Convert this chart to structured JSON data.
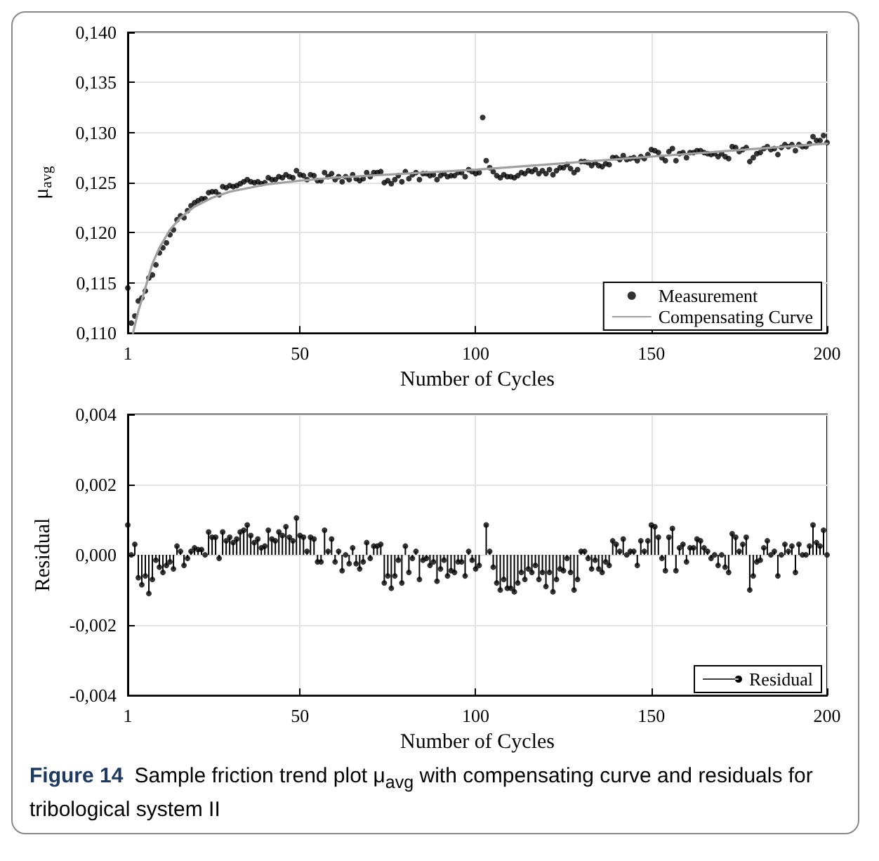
{
  "chart_data": [
    {
      "type": "scatter",
      "xlabel": "Number of Cycles",
      "ylabel": "μ$_{avg}$",
      "xlim": [
        1,
        200
      ],
      "xticks": [
        1,
        50,
        100,
        150,
        200
      ],
      "ylim": [
        0.11,
        0.14
      ],
      "yticks": [
        {
          "value": 0.11,
          "label": "0,110"
        },
        {
          "value": 0.115,
          "label": "0,115"
        },
        {
          "value": 0.12,
          "label": "0,120"
        },
        {
          "value": 0.125,
          "label": "0,125"
        },
        {
          "value": 0.13,
          "label": "0,130"
        },
        {
          "value": 0.135,
          "label": "0,135"
        },
        {
          "value": 0.14,
          "label": "0,140"
        }
      ],
      "grid": true,
      "legend": "bottom right",
      "x": [
        1,
        2,
        3,
        4,
        5,
        6,
        7,
        8,
        9,
        10,
        11,
        12,
        13,
        14,
        15,
        16,
        17,
        18,
        19,
        20,
        21,
        22,
        23,
        24,
        25,
        26,
        27,
        28,
        29,
        30,
        31,
        32,
        33,
        34,
        35,
        36,
        37,
        38,
        39,
        40,
        41,
        42,
        43,
        44,
        45,
        46,
        47,
        48,
        49,
        50,
        51,
        52,
        53,
        54,
        55,
        56,
        57,
        58,
        59,
        60,
        61,
        62,
        63,
        64,
        65,
        66,
        67,
        68,
        69,
        70,
        71,
        72,
        73,
        74,
        75,
        76,
        77,
        78,
        79,
        80,
        81,
        82,
        83,
        84,
        85,
        86,
        87,
        88,
        89,
        90,
        91,
        92,
        93,
        94,
        95,
        96,
        97,
        98,
        99,
        100,
        101,
        102,
        103,
        104,
        105,
        106,
        107,
        108,
        109,
        110,
        111,
        112,
        113,
        114,
        115,
        116,
        117,
        118,
        119,
        120,
        121,
        122,
        123,
        124,
        125,
        126,
        127,
        128,
        129,
        130,
        131,
        132,
        133,
        134,
        135,
        136,
        137,
        138,
        139,
        140,
        141,
        142,
        143,
        144,
        145,
        146,
        147,
        148,
        149,
        150,
        151,
        152,
        153,
        154,
        155,
        156,
        157,
        158,
        159,
        160,
        161,
        162,
        163,
        164,
        165,
        166,
        167,
        168,
        169,
        170,
        171,
        172,
        173,
        174,
        175,
        176,
        177,
        178,
        179,
        180,
        181,
        182,
        183,
        184,
        185,
        186,
        187,
        188,
        189,
        190,
        191,
        192,
        193,
        194,
        195,
        196,
        197,
        198,
        199,
        200
      ],
      "series": [
        {
          "name": "Measurement",
          "marker": "circle",
          "color": "#000000",
          "values": [
            0.1145,
            0.111,
            0.1117,
            0.1132,
            0.1135,
            0.1142,
            0.1155,
            0.1158,
            0.1168,
            0.118,
            0.1185,
            0.119,
            0.1198,
            0.1203,
            0.1213,
            0.1217,
            0.1215,
            0.1222,
            0.1227,
            0.123,
            0.1232,
            0.1234,
            0.1234,
            0.124,
            0.1241,
            0.1241,
            0.1238,
            0.1246,
            0.1245,
            0.1247,
            0.1246,
            0.1247,
            0.1249,
            0.1251,
            0.1253,
            0.1251,
            0.125,
            0.1251,
            0.1249,
            0.125,
            0.1255,
            0.1253,
            0.1253,
            0.1256,
            0.1255,
            0.1258,
            0.1256,
            0.1255,
            0.1262,
            0.1258,
            0.1257,
            0.1253,
            0.1258,
            0.1257,
            0.1252,
            0.1252,
            0.126,
            0.1256,
            0.1259,
            0.1253,
            0.1256,
            0.1251,
            0.1256,
            0.1253,
            0.1258,
            0.1254,
            0.1252,
            0.1254,
            0.126,
            0.1256,
            0.126,
            0.126,
            0.1261,
            0.125,
            0.1252,
            0.1249,
            0.1253,
            0.1257,
            0.1251,
            0.1261,
            0.1254,
            0.1258,
            0.126,
            0.1253,
            0.1259,
            0.1259,
            0.1257,
            0.1258,
            0.1253,
            0.1257,
            0.1259,
            0.1256,
            0.1257,
            0.1257,
            0.126,
            0.126,
            0.1256,
            0.1263,
            0.1261,
            0.1259,
            0.126,
            0.1315,
            0.1272,
            0.1265,
            0.1261,
            0.1257,
            0.1255,
            0.1258,
            0.1256,
            0.1256,
            0.1255,
            0.1257,
            0.126,
            0.1259,
            0.1262,
            0.1261,
            0.1263,
            0.1259,
            0.1262,
            0.1259,
            0.1263,
            0.1258,
            0.1262,
            0.1265,
            0.1265,
            0.1268,
            0.1264,
            0.126,
            0.1263,
            0.1271,
            0.1271,
            0.127,
            0.1267,
            0.127,
            0.1267,
            0.1266,
            0.1269,
            0.1268,
            0.1275,
            0.1275,
            0.1273,
            0.1277,
            0.1273,
            0.1274,
            0.1275,
            0.1272,
            0.1276,
            0.1274,
            0.1278,
            0.1283,
            0.1282,
            0.128,
            0.1275,
            0.1272,
            0.1281,
            0.1284,
            0.1272,
            0.1279,
            0.128,
            0.1275,
            0.128,
            0.128,
            0.1282,
            0.1282,
            0.128,
            0.1279,
            0.1278,
            0.1279,
            0.1276,
            0.1279,
            0.1276,
            0.1274,
            0.1286,
            0.1285,
            0.1281,
            0.1283,
            0.1285,
            0.1271,
            0.1275,
            0.1279,
            0.128,
            0.1284,
            0.1286,
            0.1283,
            0.1284,
            0.1278,
            0.1285,
            0.1288,
            0.1286,
            0.1288,
            0.1282,
            0.1288,
            0.1286,
            0.1286,
            0.1289,
            0.1296,
            0.1292,
            0.1292,
            0.1297,
            0.129
          ]
        },
        {
          "name": "Compensating Curve",
          "type": "line",
          "marker": "none",
          "color": "#a0a0a0",
          "x": [
            2.5,
            4,
            5,
            6,
            8,
            10,
            13,
            16,
            20,
            25,
            30,
            40,
            50,
            60,
            80,
            100,
            120,
            150,
            200
          ],
          "values": [
            0.11,
            0.1122,
            0.1133,
            0.1145,
            0.1169,
            0.1185,
            0.1203,
            0.1215,
            0.1226,
            0.1235,
            0.1241,
            0.1248,
            0.1252,
            0.1255,
            0.1259,
            0.1263,
            0.1268,
            0.1276,
            0.1289
          ]
        }
      ]
    },
    {
      "type": "lollipop",
      "marker": "circle",
      "xlabel": "Number of Cycles",
      "ylabel": "Residual",
      "xlim": [
        1,
        200
      ],
      "xticks": [
        1,
        50,
        100,
        150,
        200
      ],
      "ylim": [
        -0.004,
        0.004
      ],
      "yticks": [
        {
          "value": -0.004,
          "label": "-0,004"
        },
        {
          "value": -0.002,
          "label": "-0,002"
        },
        {
          "value": 0,
          "label": "0,000"
        },
        {
          "value": 0.002,
          "label": "0,002"
        },
        {
          "value": 0.004,
          "label": "0,004"
        }
      ],
      "grid": true,
      "legend": "bottom right",
      "annotations": [
        "Figure 14",
        "Sample friction trend plot μ$_{avg}$ with compensating curve and residuals for tribological system II"
      ],
      "x": [
        1,
        2,
        3,
        4,
        5,
        6,
        7,
        8,
        9,
        10,
        11,
        12,
        13,
        14,
        15,
        16,
        17,
        18,
        19,
        20,
        21,
        22,
        23,
        24,
        25,
        26,
        27,
        28,
        29,
        30,
        31,
        32,
        33,
        34,
        35,
        36,
        37,
        38,
        39,
        40,
        41,
        42,
        43,
        44,
        45,
        46,
        47,
        48,
        49,
        50,
        51,
        52,
        53,
        54,
        55,
        56,
        57,
        58,
        59,
        60,
        61,
        62,
        63,
        64,
        65,
        66,
        67,
        68,
        69,
        70,
        71,
        72,
        73,
        74,
        75,
        76,
        77,
        78,
        79,
        80,
        81,
        82,
        83,
        84,
        85,
        86,
        87,
        88,
        89,
        90,
        91,
        92,
        93,
        94,
        95,
        96,
        97,
        98,
        99,
        100,
        101,
        102,
        103,
        104,
        105,
        106,
        107,
        108,
        109,
        110,
        111,
        112,
        113,
        114,
        115,
        116,
        117,
        118,
        119,
        120,
        121,
        122,
        123,
        124,
        125,
        126,
        127,
        128,
        129,
        130,
        131,
        132,
        133,
        134,
        135,
        136,
        137,
        138,
        139,
        140,
        141,
        142,
        143,
        144,
        145,
        146,
        147,
        148,
        149,
        150,
        151,
        152,
        153,
        154,
        155,
        156,
        157,
        158,
        159,
        160,
        161,
        162,
        163,
        164,
        165,
        166,
        167,
        168,
        169,
        170,
        171,
        172,
        173,
        174,
        175,
        176,
        177,
        178,
        179,
        180,
        181,
        182,
        183,
        184,
        185,
        186,
        187,
        188,
        189,
        190,
        191,
        192,
        193,
        194,
        195,
        196,
        197,
        198,
        199,
        200
      ],
      "series": [
        {
          "name": "Residual",
          "color": "#000000",
          "values": [
            0.00085,
            0,
            0.0003,
            -0.00065,
            -0.00085,
            -0.0006,
            -0.0011,
            -0.0007,
            -0.00015,
            -0.00035,
            -0.0005,
            -0.0003,
            -0.0002,
            -0.0004,
            0.00025,
            0.0001,
            -0.0003,
            -0.0001,
            0.0001,
            0.0002,
            0.00015,
            0.00015,
            0,
            0.00065,
            0.0005,
            0.0005,
            -0.0001,
            0.00065,
            0.0004,
            0.0005,
            0.00035,
            0.00045,
            0.00065,
            0.0007,
            0.00085,
            0.00055,
            0.00035,
            0.00045,
            0.0002,
            0.00025,
            0.0007,
            0.00045,
            0.0004,
            0.00065,
            0.00055,
            0.0008,
            0.0005,
            0.0004,
            0.00105,
            0.00055,
            0.0005,
            0.0001,
            0.0005,
            0.00045,
            -0.0002,
            -0.0002,
            0.0007,
            0.0001,
            0.00045,
            -0.0002,
            0.0001,
            -0.00045,
            0,
            -0.00025,
            0.0002,
            -0.00025,
            -0.0004,
            -0.0002,
            0.00035,
            -0.0001,
            0.00025,
            0.00025,
            0.0003,
            -0.0008,
            -0.0006,
            -0.00095,
            -0.0006,
            -0.00015,
            -0.0008,
            0.00025,
            -0.0005,
            -0.0001,
            0.0001,
            -0.0007,
            -0.00015,
            -0.0001,
            -0.0003,
            -0.0002,
            -0.00075,
            -0.0004,
            -0.00015,
            -0.0006,
            -0.00045,
            -0.0005,
            -0.0002,
            -0.0002,
            -0.0006,
            0.0001,
            -0.00015,
            -0.0004,
            -0.0003,
            null,
            0.00085,
            0.0001,
            -0.00035,
            -0.0008,
            -0.001,
            -0.0007,
            -0.00095,
            -0.00095,
            -0.00105,
            -0.0008,
            -0.0005,
            -0.0007,
            -0.0004,
            -0.0005,
            -0.0003,
            -0.0007,
            -0.0005,
            -0.0009,
            -0.0005,
            -0.00105,
            -0.0007,
            -0.0004,
            -0.00045,
            -0.0001,
            -0.0005,
            -0.001,
            -0.0007,
            0.0001,
            0.0001,
            -0.0001,
            -0.0004,
            -0.00015,
            -0.0004,
            -0.0005,
            -0.0002,
            -0.0003,
            0.0004,
            0.0003,
            0.0001,
            0.00045,
            0,
            0.0001,
            0.0001,
            -0.0003,
            0.0004,
            0.0001,
            0.0004,
            0.00085,
            0.0008,
            0.0005,
            -0.0001,
            -0.00045,
            0.0005,
            0.00075,
            -0.00045,
            0.0002,
            0.0003,
            -0.0002,
            0.0002,
            0.0002,
            0.00045,
            0.0004,
            0.0002,
            0.0001,
            -0.0001,
            0,
            -0.0003,
            0,
            -0.00035,
            -0.0005,
            0.0006,
            0.0005,
            0.0001,
            0.0003,
            0.0005,
            -0.001,
            -0.0006,
            -0.0002,
            -0.00015,
            0.0002,
            0.0004,
            0,
            0.0001,
            -0.0006,
            0,
            0.0003,
            0.0001,
            0.00025,
            -0.0005,
            0.0003,
            0,
            0,
            0.00025,
            0.00085,
            0.00035,
            0.00025,
            0.0007,
            0
          ]
        }
      ]
    }
  ]
}
